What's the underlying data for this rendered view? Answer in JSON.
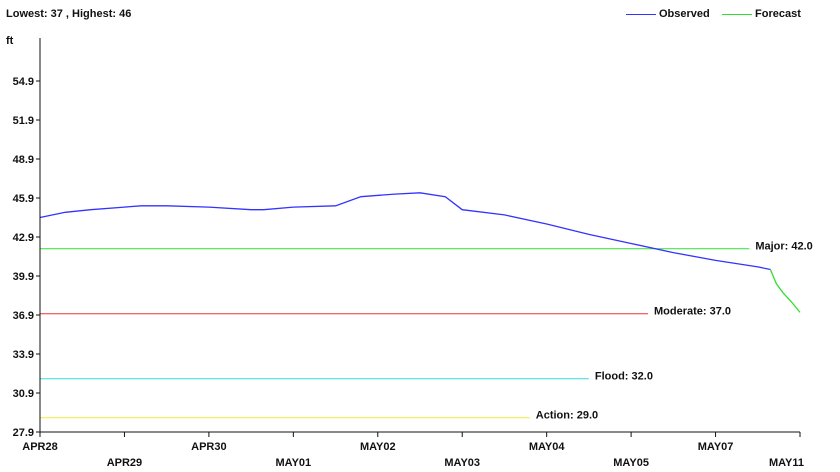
{
  "summary": "Lowest: 37 , Highest: 46",
  "colors": {
    "observed": "#3333ff",
    "forecast": "#33dd33",
    "major": "#33dd33",
    "moderate": "#ee3333",
    "flood": "#33dddd",
    "action": "#eeee33",
    "axis": "#111111"
  },
  "chart_data": {
    "type": "line",
    "ylabel": "ft",
    "ylim": [
      27.9,
      57.9
    ],
    "yticks": [
      27.9,
      30.9,
      33.9,
      36.9,
      39.9,
      42.9,
      45.9,
      48.9,
      51.9,
      54.9
    ],
    "ytick_labels": [
      "27.9",
      "30.9",
      "33.9",
      "36.9",
      "39.9",
      "42.9",
      "45.9",
      "48.9",
      "51.9",
      "54.9"
    ],
    "xlim": [
      0,
      9.0
    ],
    "xticks_top": [
      {
        "x": 0,
        "label": "APR28"
      },
      {
        "x": 2,
        "label": "APR30"
      },
      {
        "x": 4,
        "label": "MAY02"
      },
      {
        "x": 6,
        "label": "MAY04"
      },
      {
        "x": 8,
        "label": "MAY07"
      }
    ],
    "xticks_bottom": [
      {
        "x": 1,
        "label": "APR29"
      },
      {
        "x": 3,
        "label": "MAY01"
      },
      {
        "x": 5,
        "label": "MAY03"
      },
      {
        "x": 7,
        "label": "MAY05"
      },
      {
        "x": 9,
        "label": "MAY11"
      }
    ],
    "legend": [
      "Observed",
      "Forecast"
    ],
    "series": [
      {
        "name": "Observed",
        "x": [
          0,
          0.3,
          0.6,
          1.0,
          1.2,
          1.5,
          2.0,
          2.5,
          2.65,
          3.0,
          3.5,
          3.8,
          4.2,
          4.5,
          4.8,
          5.0,
          5.5,
          6.0,
          6.5,
          7.0,
          7.5,
          8.0,
          8.5,
          8.65
        ],
        "y": [
          44.4,
          44.8,
          45.0,
          45.2,
          45.3,
          45.3,
          45.2,
          45.0,
          45.0,
          45.2,
          45.3,
          46.0,
          46.2,
          46.3,
          46.0,
          45.0,
          44.6,
          43.9,
          43.1,
          42.4,
          41.7,
          41.1,
          40.6,
          40.4
        ]
      },
      {
        "name": "Forecast",
        "x": [
          8.65,
          8.72,
          8.8,
          8.9,
          9.0
        ],
        "y": [
          40.4,
          39.3,
          38.6,
          37.9,
          37.1
        ]
      }
    ],
    "thresholds": [
      {
        "name": "Major",
        "label": "Major: 42.0",
        "value": 42.0,
        "x_end": 8.4
      },
      {
        "name": "Moderate",
        "label": "Moderate: 37.0",
        "value": 37.0,
        "x_end": 7.2
      },
      {
        "name": "Flood",
        "label": "Flood: 32.0",
        "value": 32.0,
        "x_end": 6.5
      },
      {
        "name": "Action",
        "label": "Action: 29.0",
        "value": 29.0,
        "x_end": 5.8
      }
    ]
  }
}
